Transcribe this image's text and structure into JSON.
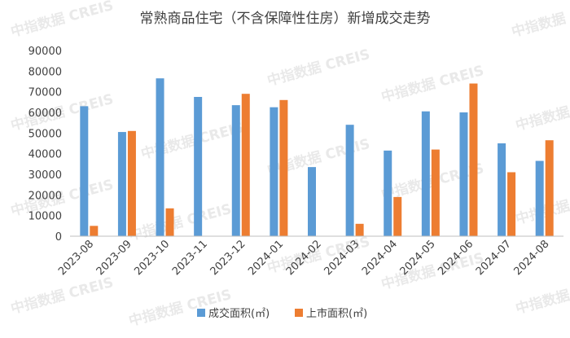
{
  "watermark": "中指数据 CREIS",
  "chart_data": {
    "type": "bar",
    "title": "常熟商品住宅（不含保障性住房）新增成交走势",
    "categories": [
      "2023-08",
      "2023-09",
      "2023-10",
      "2023-11",
      "2023-12",
      "2024-01",
      "2024-02",
      "2024-03",
      "2024-04",
      "2024-05",
      "2024-06",
      "2024-07",
      "2024-08"
    ],
    "series": [
      {
        "name": "成交面积(㎡)",
        "color": "#5b9bd5",
        "values": [
          63000,
          50500,
          76500,
          67500,
          63500,
          62500,
          33500,
          54000,
          41500,
          60500,
          60000,
          45000,
          36500
        ]
      },
      {
        "name": "上市面积(㎡)",
        "color": "#ed7d31",
        "values": [
          5000,
          51000,
          13500,
          0,
          69000,
          66000,
          0,
          6000,
          19000,
          42000,
          74000,
          31000,
          46500
        ]
      }
    ],
    "ylim": [
      0,
      90000
    ],
    "yticks": [
      0,
      10000,
      20000,
      30000,
      40000,
      50000,
      60000,
      70000,
      80000,
      90000
    ],
    "grid": false,
    "legend": "bottom"
  }
}
